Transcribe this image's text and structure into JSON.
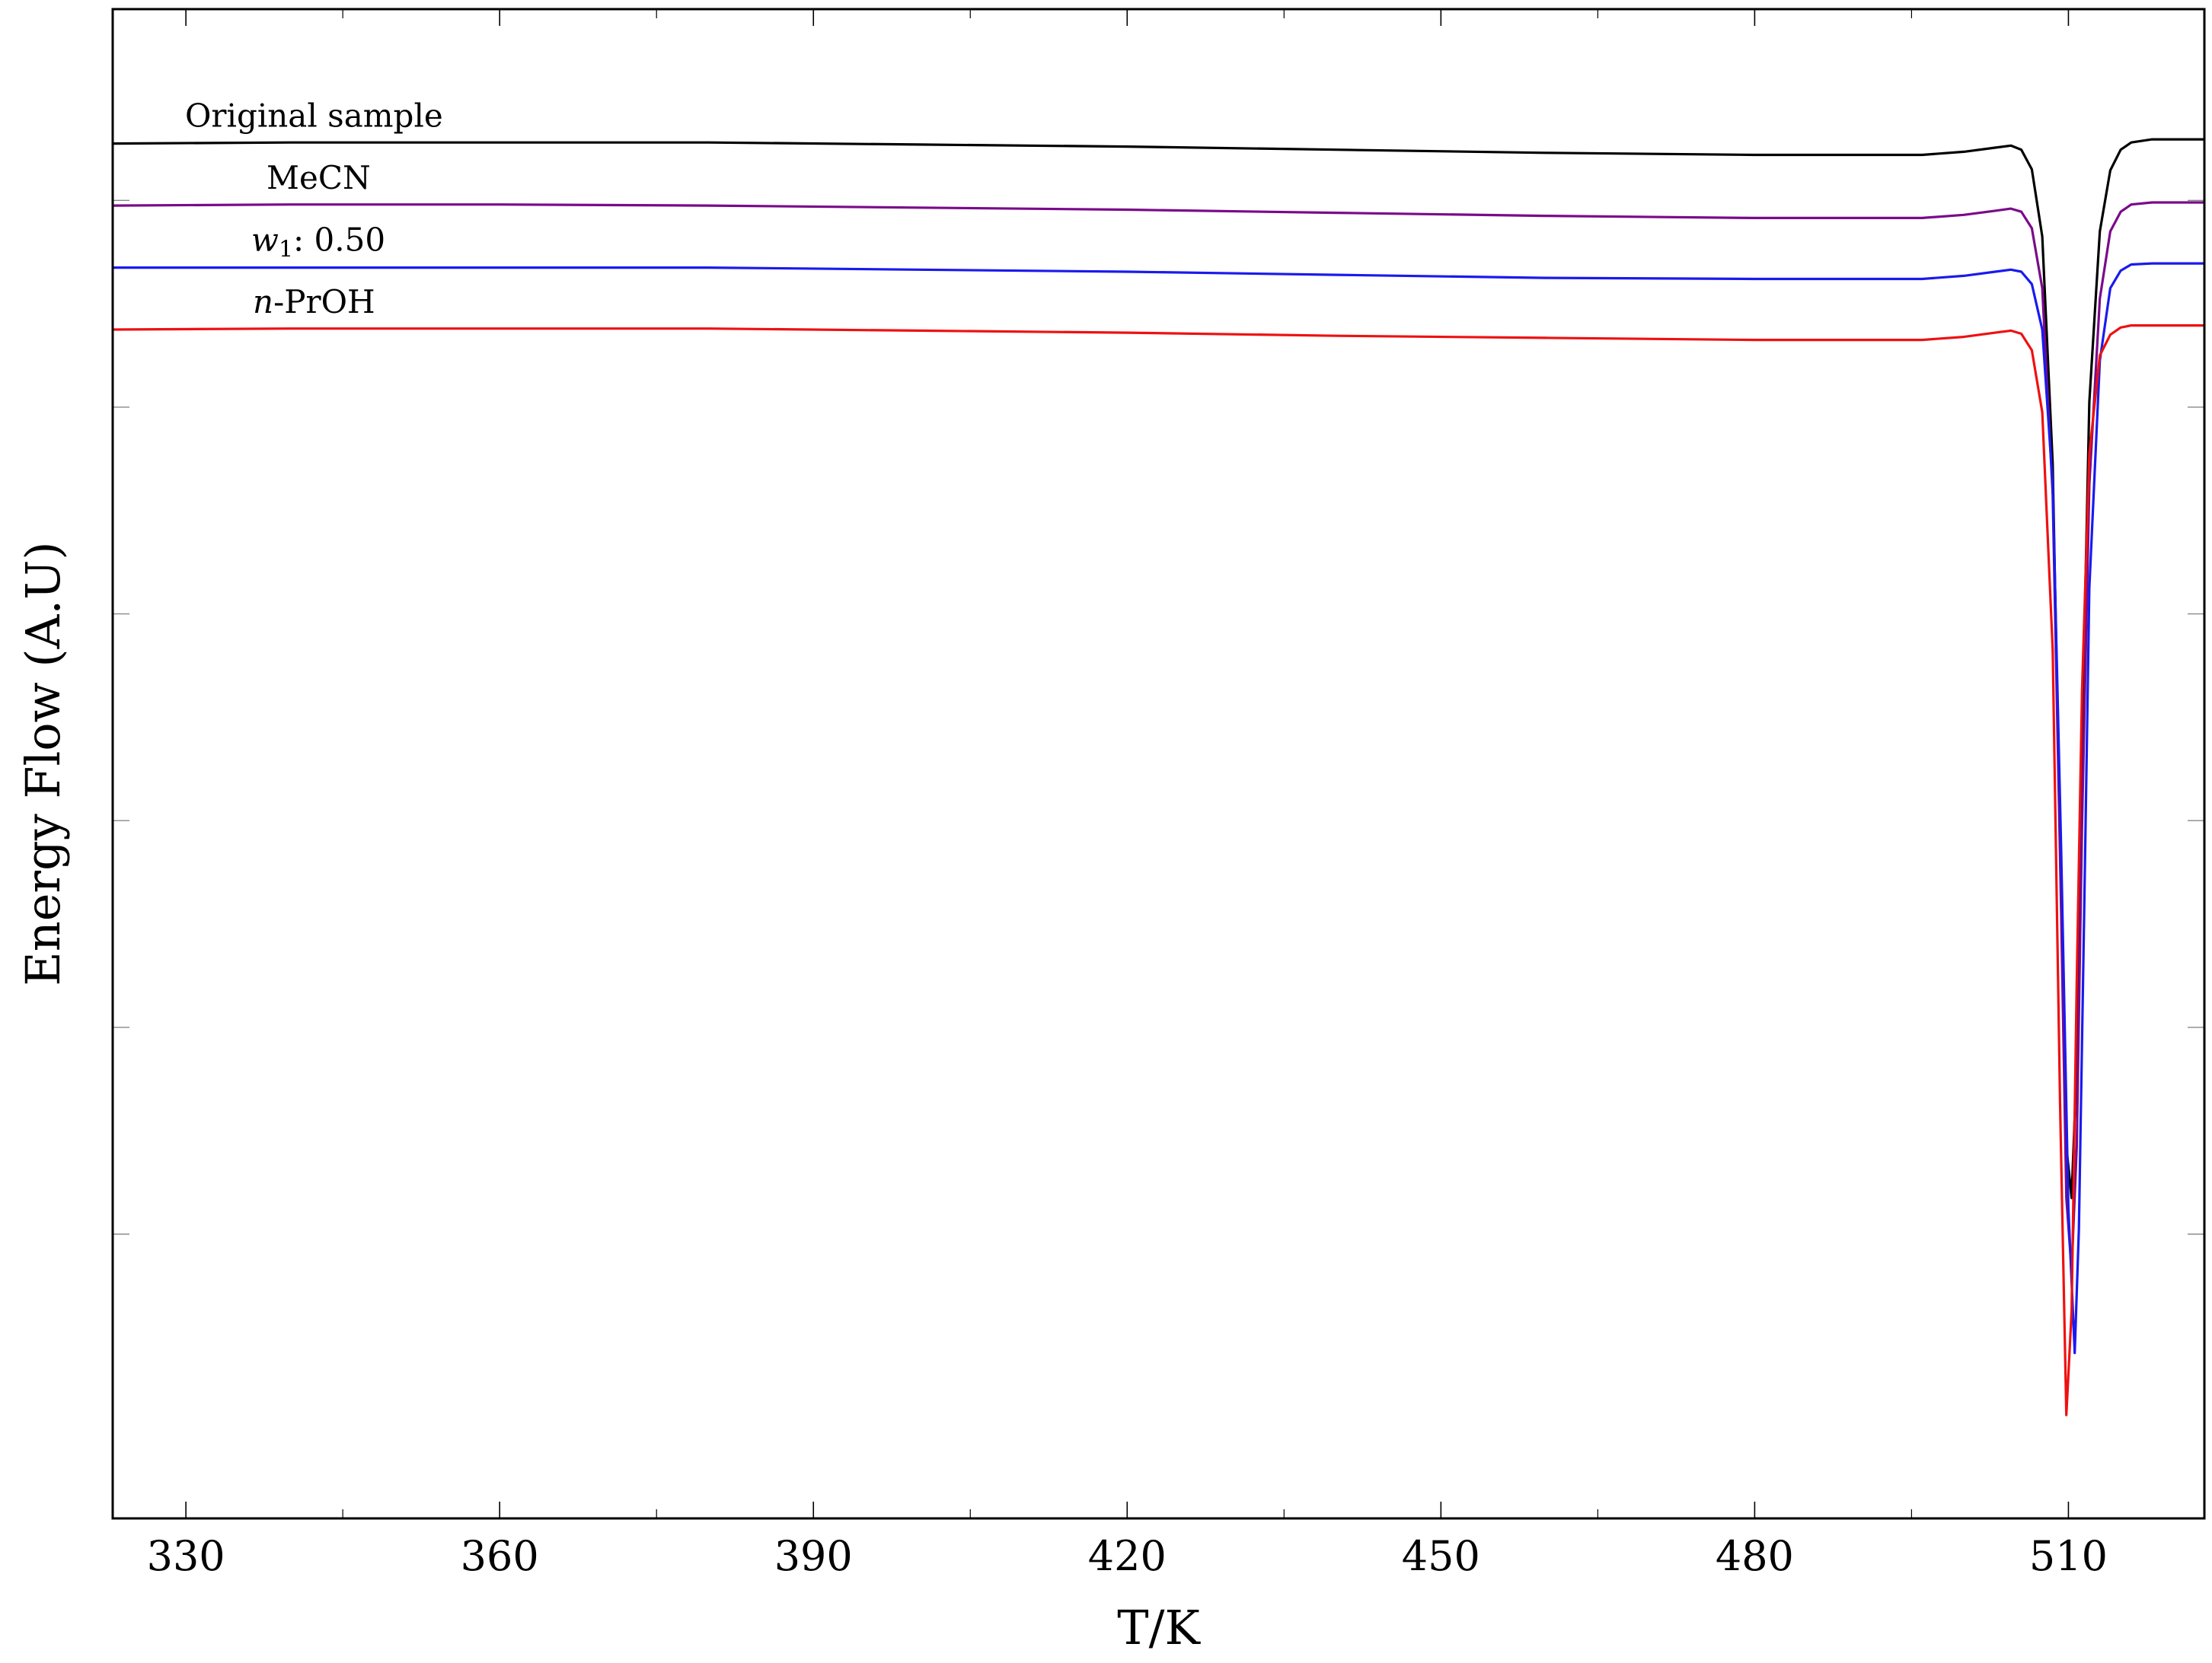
{
  "chart_data": {
    "type": "line",
    "title": "",
    "xlabel": "T/K",
    "ylabel": "Energy Flow (A.U)",
    "xlim": [
      323,
      523
    ],
    "ylim": [
      -14.0,
      0.6
    ],
    "x_ticks": [
      330,
      360,
      390,
      420,
      450,
      480,
      510
    ],
    "x_tick_labels": [
      "330",
      "360",
      "390",
      "420",
      "450",
      "480",
      "510"
    ],
    "y_ticks": [
      -11.25,
      -9.25,
      -7.25,
      -5.25,
      -3.25,
      -1.25
    ],
    "y_tick_labels_shown": false,
    "grid": false,
    "legend": "none",
    "series": [
      {
        "name": "Original sample",
        "label_text": "Original sample",
        "color": "#000000",
        "x": [
          323,
          340,
          360,
          380,
          400,
          420,
          440,
          460,
          480,
          490,
          496,
          500,
          503,
          504.5,
          505.5,
          506.5,
          507.5,
          508.5,
          509.3,
          509.8,
          510.3,
          510.8,
          511.3,
          512,
          513,
          514,
          515,
          516,
          518,
          520,
          523
        ],
        "y": [
          -0.7,
          -0.69,
          -0.69,
          -0.69,
          -0.71,
          -0.73,
          -0.76,
          -0.79,
          -0.81,
          -0.81,
          -0.81,
          -0.78,
          -0.74,
          -0.72,
          -0.76,
          -0.95,
          -1.6,
          -3.8,
          -8.0,
          -10.4,
          -10.9,
          -9.6,
          -6.5,
          -3.2,
          -1.55,
          -0.96,
          -0.76,
          -0.69,
          -0.66,
          -0.66,
          -0.66
        ]
      },
      {
        "name": "MeCN",
        "label_text": "MeCN",
        "color": "#7a0a8a",
        "x": [
          323,
          340,
          360,
          380,
          400,
          420,
          440,
          460,
          480,
          490,
          496,
          500,
          503,
          504.5,
          505.5,
          506.5,
          507.5,
          508.5,
          509.3,
          509.8,
          510.3,
          510.8,
          511.3,
          512,
          513,
          514,
          515,
          516,
          518,
          520,
          523
        ],
        "y": [
          -1.3,
          -1.29,
          -1.29,
          -1.3,
          -1.32,
          -1.34,
          -1.37,
          -1.4,
          -1.42,
          -1.42,
          -1.42,
          -1.39,
          -1.35,
          -1.33,
          -1.36,
          -1.52,
          -2.1,
          -4.1,
          -8.1,
          -10.9,
          -11.6,
          -10.4,
          -7.3,
          -4.0,
          -2.2,
          -1.55,
          -1.36,
          -1.29,
          -1.27,
          -1.27,
          -1.27
        ]
      },
      {
        "name": "w1: 0.50",
        "label_text": "w1: 0.50",
        "color": "#1a1aee",
        "x": [
          323,
          340,
          360,
          380,
          400,
          420,
          440,
          460,
          480,
          490,
          496,
          500,
          503,
          504.5,
          505.5,
          506.5,
          507.5,
          508.5,
          509.3,
          510,
          510.6,
          511,
          511.5,
          512,
          513,
          514,
          515,
          516,
          518,
          520,
          523
        ],
        "y": [
          -1.9,
          -1.9,
          -1.9,
          -1.9,
          -1.92,
          -1.94,
          -1.97,
          -2.0,
          -2.01,
          -2.01,
          -2.01,
          -1.98,
          -1.94,
          -1.92,
          -1.94,
          -2.06,
          -2.5,
          -4.0,
          -7.5,
          -11.0,
          -12.4,
          -11.2,
          -8.2,
          -5.0,
          -2.8,
          -2.1,
          -1.93,
          -1.87,
          -1.86,
          -1.86,
          -1.86
        ]
      },
      {
        "name": "n-PrOH",
        "label_text": "n-PrOH",
        "color": "#ee1111",
        "x": [
          323,
          340,
          360,
          380,
          400,
          420,
          440,
          460,
          480,
          490,
          496,
          500,
          503,
          504.5,
          505.5,
          506.5,
          507.5,
          508.5,
          509.2,
          509.8,
          510.3,
          510.8,
          511.3,
          512,
          513,
          514,
          515,
          516,
          518,
          520,
          523
        ],
        "y": [
          -2.5,
          -2.49,
          -2.49,
          -2.49,
          -2.51,
          -2.53,
          -2.56,
          -2.58,
          -2.6,
          -2.6,
          -2.6,
          -2.57,
          -2.53,
          -2.51,
          -2.54,
          -2.7,
          -3.3,
          -5.6,
          -10.0,
          -13.0,
          -12.0,
          -8.8,
          -6.0,
          -3.7,
          -2.75,
          -2.55,
          -2.48,
          -2.46,
          -2.46,
          -2.46,
          -2.46
        ]
      }
    ]
  }
}
